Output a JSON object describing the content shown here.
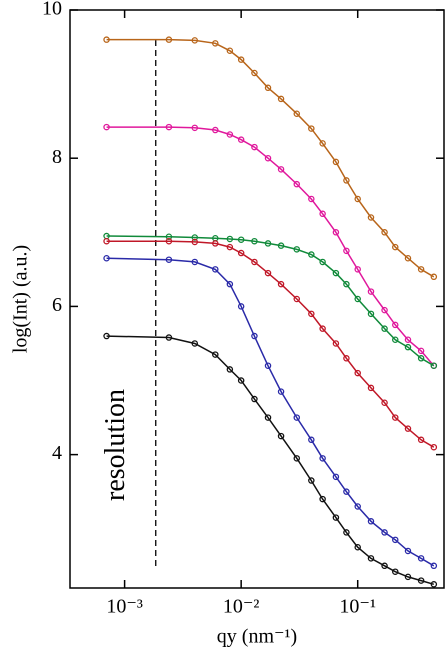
{
  "chart_data": {
    "type": "scatter",
    "x_label": "qy (nm⁻¹)",
    "y_label": "log(Int)   (a.u.)",
    "x_log": true,
    "xlim": [
      0.00034,
      0.55
    ],
    "ylim": [
      2.2,
      10
    ],
    "xticks": [
      {
        "value": 0.001,
        "label": "10⁻³"
      },
      {
        "value": 0.01,
        "label": "10⁻²"
      },
      {
        "value": 0.1,
        "label": "10⁻¹"
      }
    ],
    "yticks": [
      4,
      6,
      8,
      10
    ],
    "annotation": {
      "text": "resolution",
      "x": 0.00185
    },
    "x": [
      0.0007,
      0.0024,
      0.004,
      0.006,
      0.008,
      0.01,
      0.013,
      0.017,
      0.022,
      0.03,
      0.04,
      0.05,
      0.065,
      0.08,
      0.1,
      0.13,
      0.17,
      0.21,
      0.27,
      0.35,
      0.45
    ],
    "series": [
      {
        "color": "#b8651a",
        "values": [
          9.6,
          9.6,
          9.59,
          9.55,
          9.45,
          9.33,
          9.15,
          8.95,
          8.8,
          8.6,
          8.4,
          8.2,
          7.95,
          7.7,
          7.45,
          7.2,
          7.0,
          6.8,
          6.65,
          6.5,
          6.4
        ]
      },
      {
        "color": "#e0189c",
        "values": [
          8.42,
          8.42,
          8.41,
          8.38,
          8.32,
          8.25,
          8.15,
          8.0,
          7.85,
          7.65,
          7.45,
          7.25,
          7.0,
          6.75,
          6.5,
          6.2,
          5.95,
          5.75,
          5.55,
          5.4,
          5.2
        ]
      },
      {
        "color": "#108a3a",
        "values": [
          6.95,
          6.94,
          6.93,
          6.92,
          6.91,
          6.9,
          6.88,
          6.85,
          6.82,
          6.77,
          6.7,
          6.6,
          6.45,
          6.3,
          6.1,
          5.9,
          5.7,
          5.55,
          5.45,
          5.3,
          5.2
        ]
      },
      {
        "color": "#c01828",
        "values": [
          6.88,
          6.88,
          6.87,
          6.85,
          6.8,
          6.72,
          6.6,
          6.45,
          6.3,
          6.1,
          5.9,
          5.7,
          5.5,
          5.3,
          5.1,
          4.9,
          4.7,
          4.5,
          4.35,
          4.2,
          4.1
        ]
      },
      {
        "color": "#2a2aa8",
        "values": [
          6.65,
          6.63,
          6.6,
          6.5,
          6.3,
          6.0,
          5.6,
          5.2,
          4.85,
          4.5,
          4.2,
          3.95,
          3.7,
          3.5,
          3.3,
          3.1,
          2.95,
          2.85,
          2.7,
          2.6,
          2.5
        ]
      },
      {
        "color": "#111111",
        "values": [
          5.6,
          5.58,
          5.5,
          5.35,
          5.15,
          5.0,
          4.75,
          4.5,
          4.25,
          3.95,
          3.65,
          3.4,
          3.15,
          2.95,
          2.75,
          2.6,
          2.5,
          2.42,
          2.35,
          2.3,
          2.25
        ]
      }
    ]
  }
}
